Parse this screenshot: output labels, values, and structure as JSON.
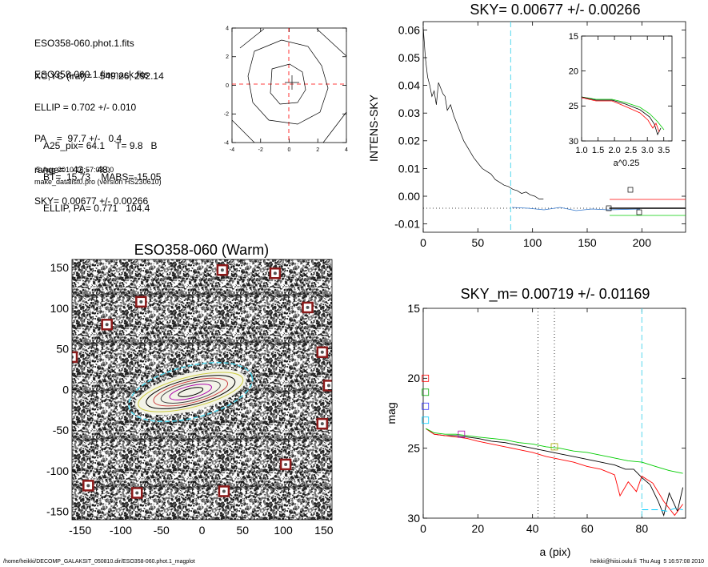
{
  "info": {
    "files": [
      "ESO358-060.phot.1.fits",
      "ESO358-060.1.finmask.fits"
    ],
    "params": [
      "XC,YC (iraf)=   549.26, 292.14",
      "ELLIP = 0.702 +/- 0.010",
      "PA    =  97.7 +/-   0.4",
      "range=   42.-   48.",
      "SKY= 0.00677 +/- 0.00266"
    ],
    "results": [
      "A25_pix= 64.1    T= 9.8   B",
      "BT=  15.73    MABS=-15.05",
      "ELLIP, PA= 0.771   104.4"
    ],
    "timestamp": "5-Aug-2010 16:57:08.00",
    "program": "make_datalist0.pro (version HS230610)"
  },
  "footer": {
    "path": "/home/heikki/DECOMP_GALAKSIT_050810.dir/ESO358-060.phot.1_magplot",
    "user": "heikki@hiisi.oulu.fi  Thu Aug  5 16:57:08 2010"
  },
  "chart_data": [
    {
      "type": "line",
      "id": "contour",
      "xlim": [
        -4,
        4
      ],
      "ylim": [
        -4,
        4
      ],
      "xticks": [
        "-4",
        "-2",
        "0",
        "2",
        "4"
      ],
      "yticks": [
        "4",
        "2",
        "0",
        "-2",
        "-4"
      ]
    },
    {
      "type": "line",
      "id": "sky",
      "title": "SKY= 0.00677 +/- 0.00266",
      "xlabel": "",
      "ylabel": "INTENS-SKY",
      "xlim": [
        0,
        240
      ],
      "ylim": [
        -0.013,
        0.063
      ],
      "xticks": [
        "0",
        "50",
        "100",
        "150",
        "200"
      ],
      "yticks": [
        "0.06",
        "0.05",
        "0.04",
        "0.03",
        "0.02",
        "0.01",
        "0.00",
        "-0.01"
      ],
      "x": [
        0,
        2,
        4,
        6,
        8,
        10,
        12,
        14,
        16,
        18,
        20,
        22,
        25,
        28,
        31,
        34,
        37,
        40,
        43,
        46,
        50,
        54,
        58,
        62,
        66,
        70,
        74,
        78,
        82,
        86,
        90,
        94,
        98,
        102,
        106,
        110
      ],
      "y": [
        0.061,
        0.05,
        0.043,
        0.04,
        0.036,
        0.038,
        0.033,
        0.041,
        0.039,
        0.037,
        0.036,
        0.031,
        0.033,
        0.029,
        0.026,
        0.023,
        0.02,
        0.018,
        0.016,
        0.014,
        0.012,
        0.01,
        0.009,
        0.008,
        0.006,
        0.005,
        0.004,
        0.0035,
        0.0025,
        0.002,
        0.001,
        0.0015,
        0.0005,
        0.0,
        -0.001,
        -0.001
      ],
      "sky_x": 80,
      "inset": {
        "xlabel": "a^0.25",
        "xlim": [
          1.0,
          3.5
        ],
        "ylim": [
          15,
          30
        ],
        "xticks": [
          "1.0",
          "1.5",
          "2.0",
          "2.5",
          "3.0",
          "3.5"
        ],
        "yticks": [
          "15",
          "20",
          "25",
          "30"
        ]
      }
    },
    {
      "type": "heatmap",
      "id": "image",
      "title": "ESO358-060 (Warm)",
      "xlim": [
        -160,
        160
      ],
      "ylim": [
        -160,
        160
      ],
      "xticks": [
        "-150",
        "-100",
        "-50",
        "0",
        "50",
        "100",
        "150"
      ],
      "yticks": [
        "150",
        "100",
        "50",
        "0",
        "-50",
        "-100",
        "-150"
      ],
      "masked_stars": [
        [
          -117,
          80
        ],
        [
          -75,
          108
        ],
        [
          25,
          147
        ],
        [
          90,
          143
        ],
        [
          130,
          101
        ],
        [
          148,
          46
        ],
        [
          156,
          5
        ],
        [
          148,
          -42
        ],
        [
          103,
          -92
        ],
        [
          27,
          -125
        ],
        [
          -80,
          -127
        ],
        [
          -140,
          -118
        ],
        [
          -160,
          40
        ]
      ],
      "ellipse": {
        "cx": -14,
        "cy": -3,
        "a": 78,
        "b": 22,
        "pa_deg": 14
      }
    },
    {
      "type": "line",
      "id": "mag",
      "title": "SKY_m=  0.00719 +/- 0.01169",
      "xlabel": "a (pix)",
      "ylabel": "mag",
      "xlim": [
        0,
        96
      ],
      "ylim": [
        30,
        15
      ],
      "xticks": [
        "0",
        "20",
        "40",
        "60",
        "80"
      ],
      "yticks": [
        "15",
        "20",
        "25",
        "30"
      ],
      "vlines_dotted": [
        42,
        48
      ],
      "vline_sky": 80,
      "series": [
        {
          "color": "#000000",
          "x": [
            1,
            4,
            8,
            12,
            16,
            20,
            25,
            30,
            35,
            40,
            45,
            50,
            55,
            60,
            65,
            70,
            74,
            77,
            80,
            83,
            86,
            88,
            90,
            93,
            95
          ],
          "y": [
            23.6,
            24.0,
            24.1,
            24.1,
            24.2,
            24.3,
            24.5,
            24.6,
            24.8,
            25.0,
            25.2,
            25.4,
            25.6,
            25.8,
            26.0,
            26.2,
            26.5,
            26.5,
            27.1,
            27.6,
            28.8,
            29.8,
            28.2,
            29.5,
            27.8
          ]
        },
        {
          "color": "#ff0000",
          "x": [
            1,
            4,
            8,
            12,
            16,
            20,
            25,
            30,
            35,
            40,
            45,
            50,
            55,
            60,
            65,
            70,
            72,
            75,
            78,
            80,
            84,
            88,
            92,
            95
          ],
          "y": [
            23.6,
            24.0,
            24.1,
            24.2,
            24.3,
            24.5,
            24.7,
            24.9,
            25.1,
            25.3,
            25.6,
            25.8,
            26.0,
            26.3,
            26.5,
            26.9,
            28.4,
            27.4,
            28.1,
            27.0,
            27.5,
            28.8,
            29.8,
            29.0
          ]
        },
        {
          "color": "#00cc00",
          "x": [
            1,
            4,
            8,
            12,
            16,
            20,
            25,
            30,
            35,
            40,
            45,
            50,
            55,
            60,
            65,
            70,
            75,
            80,
            85,
            90,
            95
          ],
          "y": [
            23.6,
            23.9,
            24.0,
            24.0,
            24.1,
            24.2,
            24.3,
            24.4,
            24.6,
            24.7,
            24.9,
            25.0,
            25.2,
            25.3,
            25.5,
            25.7,
            25.9,
            26.0,
            26.3,
            26.6,
            26.8
          ]
        },
        {
          "color": "#00ccff",
          "x": [
            80,
            83,
            86,
            89,
            92,
            95
          ],
          "y": [
            29.4,
            29.4,
            29.4,
            29.5,
            29.3,
            29.4
          ]
        }
      ],
      "markers": [
        {
          "color": "#ff0000",
          "x": 0.8,
          "y": 20.0
        },
        {
          "color": "#00aa00",
          "x": 0.8,
          "y": 21.0
        },
        {
          "color": "#3333ff",
          "x": 0.8,
          "y": 22.0
        },
        {
          "color": "#00ccff",
          "x": 0.8,
          "y": 23.0
        },
        {
          "color": "#aa00aa",
          "x": 14,
          "y": 24.0
        },
        {
          "color": "#aaaa00",
          "x": 48,
          "y": 24.9
        }
      ]
    }
  ]
}
